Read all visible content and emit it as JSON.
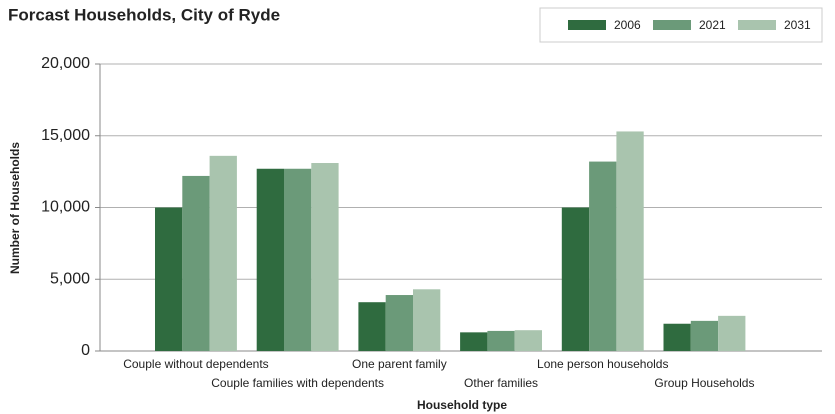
{
  "chart_data": {
    "type": "bar",
    "title": "Forcast Households, City of Ryde",
    "x_label": "Household type",
    "y_label": "Number of Households",
    "categories": [
      "Couple without dependents",
      "Couple families with dependents",
      "One parent family",
      "Other families",
      "Lone person households",
      "Group Households"
    ],
    "series": [
      {
        "name": "2006",
        "color": "#2f6b3f",
        "values": [
          10000,
          12700,
          3400,
          1300,
          10000,
          1900
        ]
      },
      {
        "name": "2021",
        "color": "#6b9a79",
        "values": [
          12200,
          12700,
          3900,
          1400,
          13200,
          2100
        ]
      },
      {
        "name": "2031",
        "color": "#a9c4ae",
        "values": [
          13600,
          13100,
          4300,
          1450,
          15300,
          2450
        ]
      }
    ],
    "ylim": [
      0,
      20000
    ],
    "yticks": [
      0,
      {
        "value": 5000,
        "label": "5,000"
      },
      {
        "value": 10000,
        "label": "10,000"
      },
      {
        "value": 15000,
        "label": "15,000"
      },
      {
        "value": 20000,
        "label": "20,000"
      }
    ],
    "grid": true,
    "legend": "top-right"
  }
}
